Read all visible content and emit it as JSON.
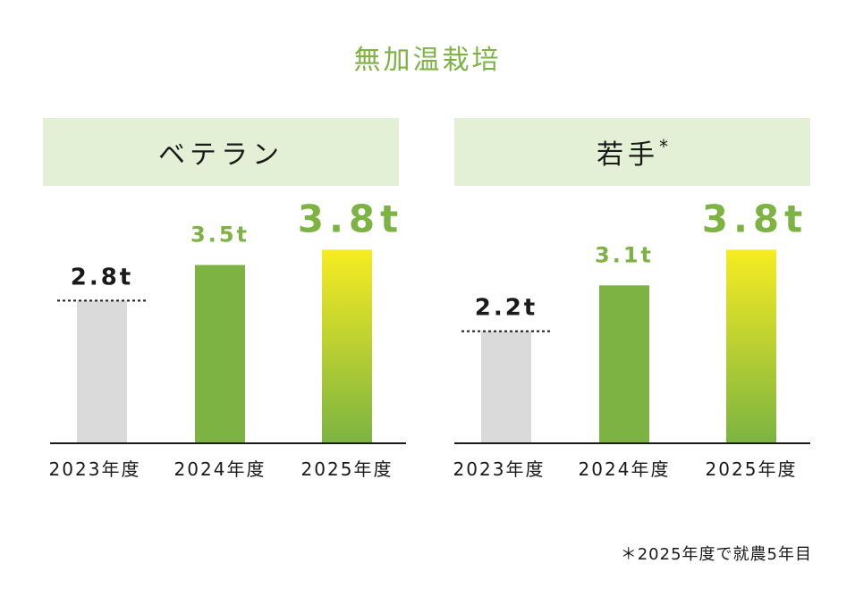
{
  "title": "無加温栽培",
  "panels": [
    {
      "header": "ベテラン",
      "header_mark": ""
    },
    {
      "header": "若手",
      "header_mark": "*"
    }
  ],
  "colors": {
    "accent_green": "#7cb342",
    "header_bg": "#e3f0d5",
    "baseline_bar": "#dadada",
    "gradient_top": "#f7ec22",
    "gradient_bottom": "#7cb342",
    "text": "#1a1a1a"
  },
  "chart_data": [
    {
      "type": "bar",
      "title": "ベテラン",
      "categories": [
        "2023年度",
        "2024年度",
        "2025年度"
      ],
      "values": [
        2.8,
        3.5,
        3.8
      ],
      "value_labels": [
        "2.8t",
        "3.5t",
        "3.8t"
      ],
      "ylim": [
        0,
        4.5
      ],
      "grid": false
    },
    {
      "type": "bar",
      "title": "若手",
      "categories": [
        "2023年度",
        "2024年度",
        "2025年度"
      ],
      "values": [
        2.2,
        3.1,
        3.8
      ],
      "value_labels": [
        "2.2t",
        "3.1t",
        "3.8t"
      ],
      "ylim": [
        0,
        4.5
      ],
      "grid": false
    }
  ],
  "footnote": "＊2025年度で就農5年目"
}
